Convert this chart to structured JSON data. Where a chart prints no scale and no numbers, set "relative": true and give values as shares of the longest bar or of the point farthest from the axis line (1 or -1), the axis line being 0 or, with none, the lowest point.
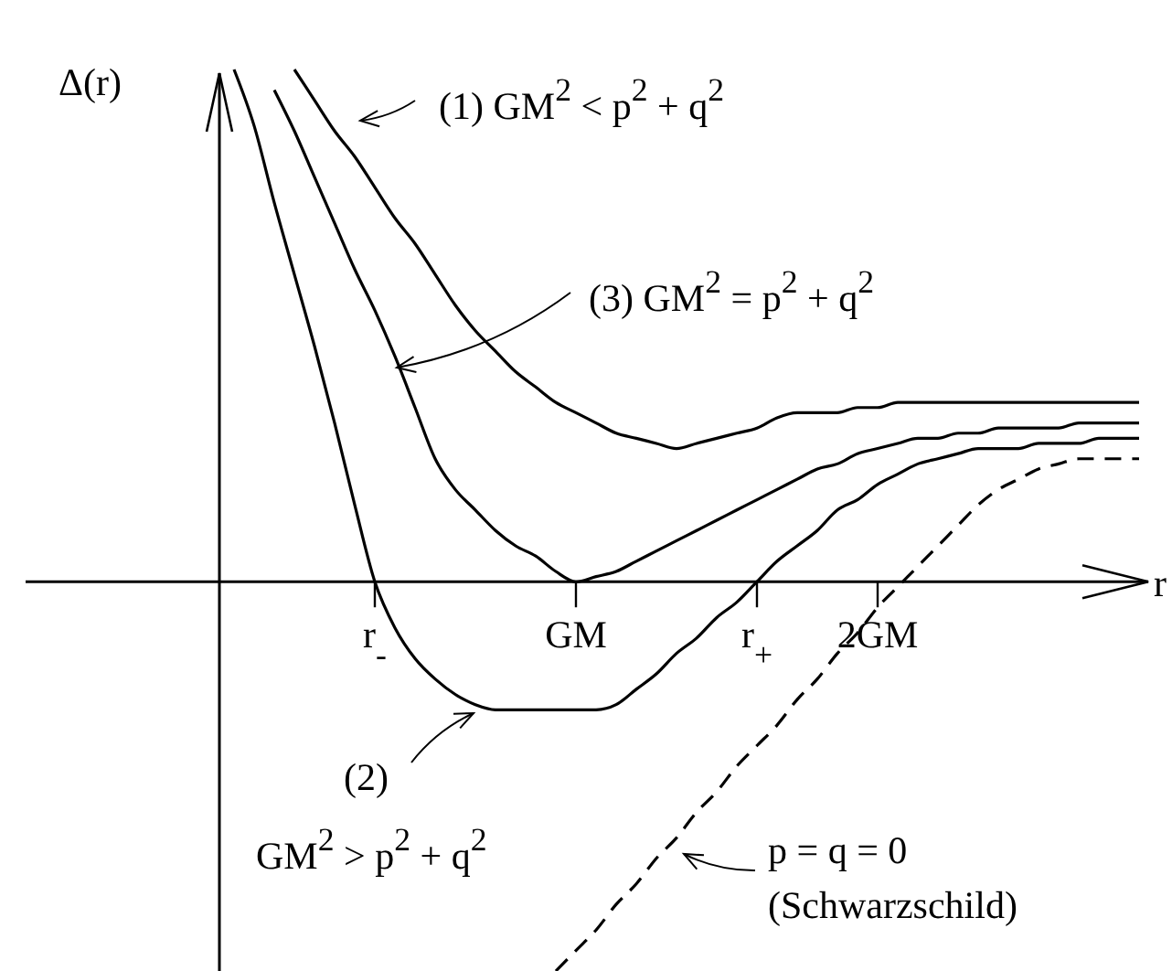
{
  "chart_data": {
    "type": "line",
    "relative": true,
    "xlabel": "r",
    "ylabel": "Δ(r)",
    "categories": [
      null,
      null,
      null,
      null,
      null,
      null,
      null,
      "r$_{-}$",
      null,
      null,
      null,
      null,
      null,
      null,
      null,
      null,
      null,
      "GM",
      null,
      null,
      null,
      null,
      null,
      null,
      null,
      null,
      "r$_{+}$",
      null,
      null,
      null,
      null,
      null,
      "2GM",
      null,
      null,
      null,
      null,
      null,
      null,
      null,
      null,
      null,
      null,
      null,
      null,
      null
    ],
    "series": [
      {
        "color": "#000000",
        "line_style": "solid",
        "values": [
          null,
          null,
          null,
          1,
          0.94,
          0.88,
          0.83,
          0.77,
          0.71,
          0.66,
          0.6,
          0.54,
          0.49,
          0.45,
          0.41,
          0.38,
          0.35,
          0.33,
          0.31,
          0.29,
          0.28,
          0.27,
          0.26,
          0.27,
          0.28,
          0.29,
          0.3,
          0.32,
          0.33,
          0.33,
          0.33,
          0.34,
          0.34,
          0.35,
          0.35,
          0.35,
          0.35,
          0.35,
          0.35,
          0.35,
          0.35,
          0.35,
          0.35,
          0.35,
          0.35,
          0.35
        ]
      },
      {
        "color": "#000000",
        "line_style": "solid",
        "values": [
          1,
          0.89,
          0.74,
          0.6,
          0.46,
          0.31,
          0.15,
          0,
          -0.09,
          -0.15,
          -0.19,
          -0.22,
          -0.24,
          -0.25,
          -0.25,
          -0.25,
          -0.25,
          -0.25,
          -0.25,
          -0.24,
          -0.21,
          -0.18,
          -0.14,
          -0.11,
          -0.07,
          -0.04,
          0,
          0.04,
          0.07,
          0.1,
          0.14,
          0.16,
          0.19,
          0.21,
          0.23,
          0.24,
          0.25,
          0.26,
          0.26,
          0.26,
          0.27,
          0.27,
          0.27,
          0.28,
          0.28,
          0.28
        ]
      },
      {
        "color": "#000000",
        "line_style": "solid",
        "values": [
          null,
          null,
          0.96,
          0.88,
          0.79,
          0.7,
          0.61,
          0.53,
          0.44,
          0.34,
          0.24,
          0.18,
          0.14,
          0.1,
          0.07,
          0.05,
          0.02,
          0,
          0.01,
          0.02,
          0.04,
          0.06,
          0.08,
          0.1,
          0.12,
          0.14,
          0.16,
          0.18,
          0.2,
          0.22,
          0.23,
          0.25,
          0.26,
          0.27,
          0.28,
          0.28,
          0.29,
          0.29,
          0.3,
          0.3,
          0.3,
          0.3,
          0.31,
          0.31,
          0.31,
          0.31
        ]
      },
      {
        "color": "#000000",
        "line_style": "dashed",
        "values": [
          null,
          null,
          null,
          null,
          null,
          null,
          null,
          null,
          null,
          null,
          null,
          null,
          null,
          null,
          null,
          null,
          -0.76,
          -0.72,
          -0.68,
          -0.63,
          -0.59,
          -0.54,
          -0.5,
          -0.45,
          -0.41,
          -0.36,
          -0.32,
          -0.28,
          -0.23,
          -0.19,
          -0.14,
          -0.1,
          -0.05,
          -0.01,
          0.03,
          0.07,
          0.11,
          0.15,
          0.18,
          0.2,
          0.22,
          0.23,
          0.24,
          0.24,
          0.24,
          0.24
        ]
      }
    ],
    "annotations": [
      "(1) GM$^{2}$ < p$^{2}$ + q$^{2}$",
      "(3) GM$^{2}$ = p$^{2}$ + q$^{2}$",
      "(2)\nGM$^{2}$ > p$^{2}$ + q$^{2}$",
      "p = q = 0\n(Schwarzschild)"
    ]
  }
}
